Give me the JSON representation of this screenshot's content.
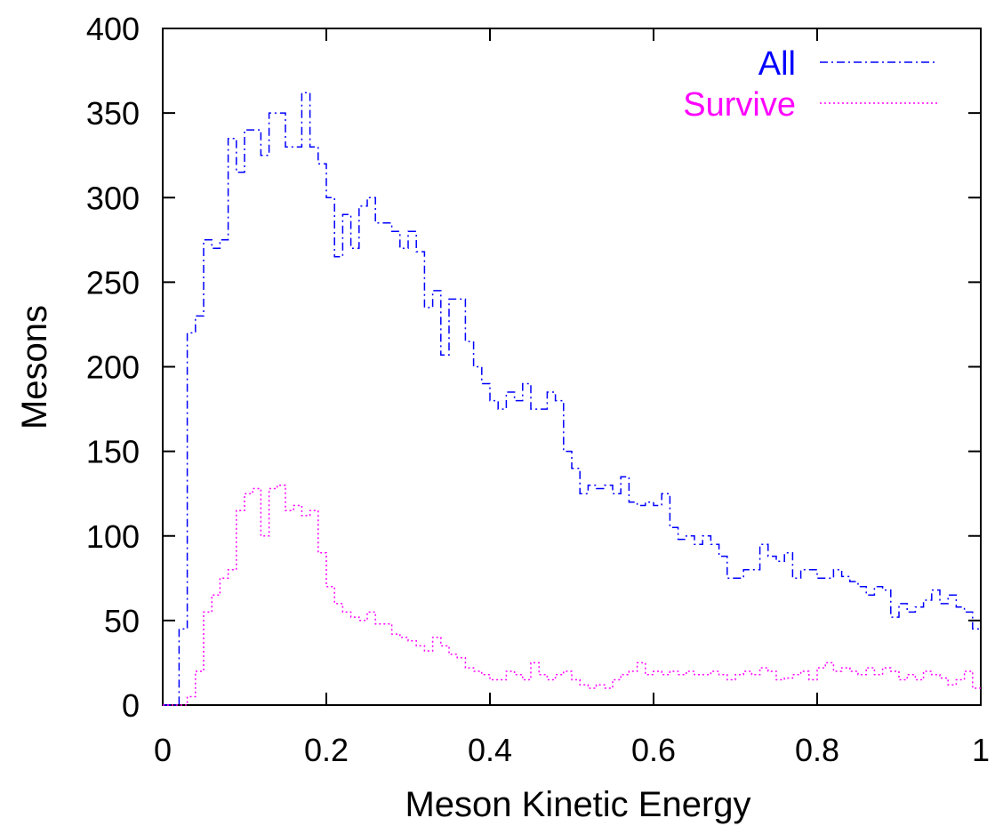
{
  "chart_data": {
    "type": "line",
    "style": "histogram-steps",
    "title": "",
    "xlabel": "Meson Kinetic Energy",
    "ylabel": "Mesons",
    "xlim": [
      0,
      1
    ],
    "ylim": [
      0,
      400
    ],
    "xticks": [
      "0",
      "0.2",
      "0.4",
      "0.6",
      "0.8",
      "1"
    ],
    "yticks": [
      "0",
      "50",
      "100",
      "150",
      "200",
      "250",
      "300",
      "350",
      "400"
    ],
    "bin_width": 0.01,
    "x": [
      0.0,
      0.01,
      0.02,
      0.03,
      0.04,
      0.05,
      0.06,
      0.07,
      0.08,
      0.09,
      0.1,
      0.11,
      0.12,
      0.13,
      0.14,
      0.15,
      0.16,
      0.17,
      0.18,
      0.19,
      0.2,
      0.21,
      0.22,
      0.23,
      0.24,
      0.25,
      0.26,
      0.27,
      0.28,
      0.29,
      0.3,
      0.31,
      0.32,
      0.33,
      0.34,
      0.35,
      0.36,
      0.37,
      0.38,
      0.39,
      0.4,
      0.41,
      0.42,
      0.43,
      0.44,
      0.45,
      0.46,
      0.47,
      0.48,
      0.49,
      0.5,
      0.51,
      0.52,
      0.53,
      0.54,
      0.55,
      0.56,
      0.57,
      0.58,
      0.59,
      0.6,
      0.61,
      0.62,
      0.63,
      0.64,
      0.65,
      0.66,
      0.67,
      0.68,
      0.69,
      0.7,
      0.71,
      0.72,
      0.73,
      0.74,
      0.75,
      0.76,
      0.77,
      0.78,
      0.79,
      0.8,
      0.81,
      0.82,
      0.83,
      0.84,
      0.85,
      0.86,
      0.87,
      0.88,
      0.89,
      0.9,
      0.91,
      0.92,
      0.93,
      0.94,
      0.95,
      0.96,
      0.97,
      0.98,
      0.99
    ],
    "series": [
      {
        "name": "All",
        "color": "#0000ff",
        "dash": "dash-dot",
        "values": [
          0,
          0,
          45,
          220,
          230,
          275,
          270,
          275,
          335,
          315,
          340,
          340,
          325,
          350,
          350,
          330,
          330,
          362,
          330,
          320,
          300,
          265,
          290,
          270,
          295,
          300,
          285,
          285,
          280,
          270,
          280,
          268,
          235,
          245,
          207,
          240,
          240,
          215,
          200,
          190,
          180,
          175,
          185,
          180,
          190,
          175,
          175,
          185,
          180,
          150,
          140,
          125,
          130,
          128,
          130,
          125,
          135,
          120,
          118,
          120,
          118,
          125,
          105,
          98,
          100,
          95,
          100,
          95,
          88,
          75,
          75,
          80,
          80,
          95,
          88,
          85,
          90,
          75,
          80,
          80,
          75,
          75,
          80,
          76,
          73,
          70,
          65,
          70,
          68,
          52,
          60,
          55,
          58,
          62,
          68,
          60,
          65,
          58,
          55,
          45
        ]
      },
      {
        "name": "Survive",
        "color": "#ff00ff",
        "dash": "dotted",
        "values": [
          0,
          0,
          0,
          5,
          20,
          55,
          65,
          75,
          80,
          115,
          125,
          128,
          100,
          128,
          130,
          115,
          118,
          112,
          115,
          90,
          70,
          60,
          55,
          52,
          50,
          55,
          48,
          48,
          42,
          40,
          38,
          35,
          32,
          40,
          35,
          30,
          28,
          22,
          20,
          18,
          15,
          15,
          20,
          18,
          15,
          25,
          18,
          15,
          18,
          20,
          15,
          12,
          10,
          12,
          10,
          15,
          18,
          20,
          25,
          18,
          20,
          18,
          20,
          18,
          20,
          18,
          18,
          20,
          18,
          15,
          18,
          20,
          18,
          22,
          20,
          15,
          16,
          18,
          20,
          15,
          22,
          25,
          20,
          22,
          20,
          18,
          22,
          18,
          22,
          20,
          15,
          18,
          15,
          20,
          18,
          16,
          12,
          15,
          20,
          10
        ]
      }
    ],
    "legend": {
      "position": "top-right"
    }
  }
}
